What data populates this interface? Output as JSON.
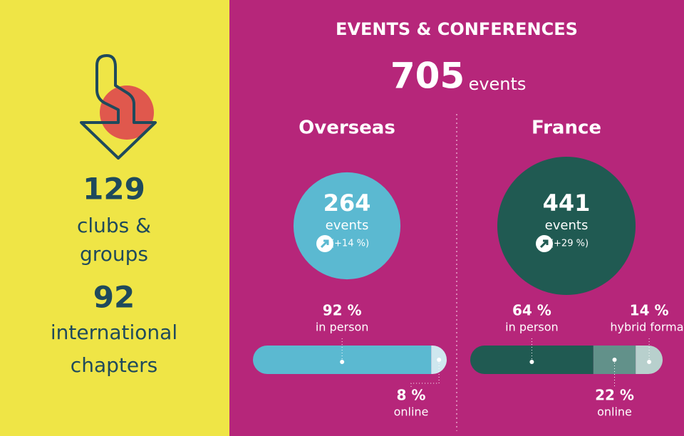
{
  "left": {
    "stats": [
      {
        "number": 129,
        "lines": [
          "clubs &",
          "groups"
        ]
      },
      {
        "number": 92,
        "lines": [
          "international",
          "chapters"
        ]
      }
    ]
  },
  "title": "EVENTS & CONFERENCES",
  "total": {
    "number": 705,
    "unit": "events"
  },
  "regions": [
    {
      "name": "Overseas",
      "count": 264,
      "unit": "events",
      "change": "(+14 %)",
      "color": "#5bb9d1",
      "text_color": "#ffffff",
      "breakdown": [
        {
          "value": 92,
          "label": "92 %",
          "text": "in person",
          "color": "#5bb9d1"
        },
        {
          "value": 8,
          "label": "8 %",
          "text": "online",
          "color": "#cfe7ef"
        }
      ]
    },
    {
      "name": "France",
      "count": 441,
      "unit": "events",
      "change": "(+29 %)",
      "color": "#205a52",
      "text_color": "#ffffff",
      "breakdown": [
        {
          "value": 64,
          "label": "64 %",
          "text": "in person",
          "color": "#205a52"
        },
        {
          "value": 22,
          "label": "22 %",
          "text": "online",
          "color": "#62918a"
        },
        {
          "value": 14,
          "label": "14 %",
          "text": "hybrid format",
          "color": "#b8d0cd"
        }
      ]
    }
  ]
}
